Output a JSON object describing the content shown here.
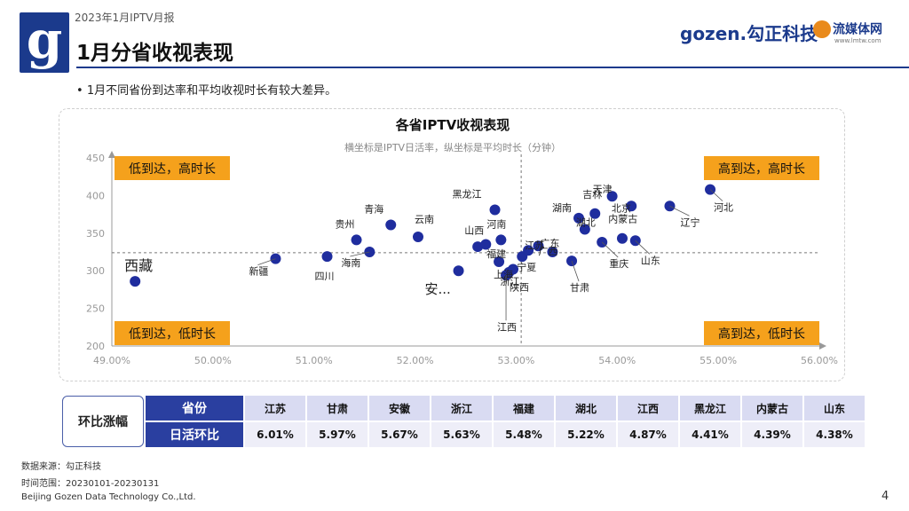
{
  "header": {
    "report_label": "2023年1月IPTV月报",
    "title": "1月分省收视表现",
    "brand_gozen": "gozen.勾正科技",
    "brand_lmtw": "流媒体网",
    "brand_lmtw_url": "www.lmtw.com"
  },
  "bullet": "1月不同省份到达率和平均收视时长有较大差异。",
  "chart_data": {
    "type": "scatter",
    "title": "各省IPTV收视表现",
    "subtitle": "横坐标是IPTV日活率，纵坐标是平均时长（分钟）",
    "xlim": [
      0.49,
      0.56
    ],
    "ylim": [
      200,
      450
    ],
    "xticks": [
      "49.00%",
      "50.00%",
      "51.00%",
      "52.00%",
      "53.00%",
      "54.00%",
      "55.00%",
      "56.00%"
    ],
    "yticks": [
      "200",
      "250",
      "300",
      "350",
      "400",
      "450"
    ],
    "ref_x": 0.5305,
    "ref_y": 324,
    "dot_color": "#1f2d9e",
    "quadrant_color": "#f5a11c",
    "quadrants": {
      "top_left": "低到达，高时长",
      "top_right": "高到达，高时长",
      "bottom_left": "低到达，低时长",
      "bottom_right": "高到达，低时长"
    },
    "points": [
      {
        "name": "西藏",
        "x": 0.4923,
        "y": 286
      },
      {
        "name": "新疆",
        "x": 0.5062,
        "y": 316
      },
      {
        "name": "四川",
        "x": 0.5113,
        "y": 319
      },
      {
        "name": "贵州",
        "x": 0.5142,
        "y": 341
      },
      {
        "name": "海南",
        "x": 0.5155,
        "y": 325
      },
      {
        "name": "青海",
        "x": 0.5176,
        "y": 361
      },
      {
        "name": "云南",
        "x": 0.5203,
        "y": 345
      },
      {
        "name": "安...",
        "x": 0.5243,
        "y": 300
      },
      {
        "name": "福建",
        "x": 0.5262,
        "y": 332
      },
      {
        "name": "山西",
        "x": 0.527,
        "y": 335
      },
      {
        "name": "黑龙江",
        "x": 0.5279,
        "y": 381
      },
      {
        "name": "河南",
        "x": 0.5285,
        "y": 341
      },
      {
        "name": "上海",
        "x": 0.5283,
        "y": 312
      },
      {
        "name": "浙江",
        "x": 0.5293,
        "y": 298
      },
      {
        "name": "陕西",
        "x": 0.5297,
        "y": 302
      },
      {
        "name": "江西",
        "x": 0.529,
        "y": 294
      },
      {
        "name": "宁夏",
        "x": 0.5306,
        "y": 319
      },
      {
        "name": "江苏",
        "x": 0.5312,
        "y": 327
      },
      {
        "name": "广西",
        "x": 0.5322,
        "y": 333
      },
      {
        "name": "广东",
        "x": 0.5336,
        "y": 325
      },
      {
        "name": "甘肃",
        "x": 0.5355,
        "y": 313
      },
      {
        "name": "湖南",
        "x": 0.5362,
        "y": 370
      },
      {
        "name": "湖北",
        "x": 0.5368,
        "y": 355
      },
      {
        "name": "吉林",
        "x": 0.5378,
        "y": 376
      },
      {
        "name": "重庆",
        "x": 0.5385,
        "y": 338
      },
      {
        "name": "天津",
        "x": 0.5395,
        "y": 399
      },
      {
        "name": "北京",
        "x": 0.5405,
        "y": 343
      },
      {
        "name": "内蒙古",
        "x": 0.5414,
        "y": 386
      },
      {
        "name": "山东",
        "x": 0.5418,
        "y": 340
      },
      {
        "name": "辽宁",
        "x": 0.5452,
        "y": 386
      },
      {
        "name": "河北",
        "x": 0.5492,
        "y": 408
      }
    ]
  },
  "table": {
    "header_label": "环比涨幅",
    "row1_label": "省份",
    "row2_label": "日活环比",
    "provinces": [
      "江苏",
      "甘肃",
      "安徽",
      "浙江",
      "福建",
      "湖北",
      "江西",
      "黑龙江",
      "内蒙古",
      "山东"
    ],
    "values": [
      "6.01%",
      "5.97%",
      "5.67%",
      "5.63%",
      "5.48%",
      "5.22%",
      "4.87%",
      "4.41%",
      "4.39%",
      "4.38%"
    ]
  },
  "footer": {
    "source": "数据来源：勾正科技",
    "time_range": "时间范围：20230101-20230131",
    "company": "Beijing Gozen Data Technology Co.,Ltd.",
    "page_number": "4"
  }
}
